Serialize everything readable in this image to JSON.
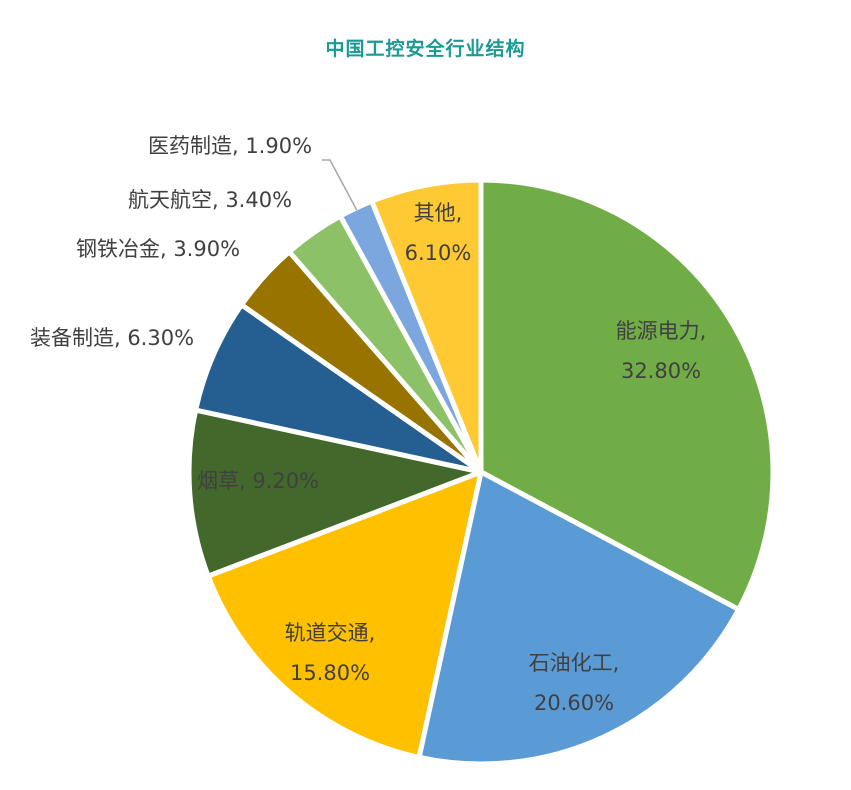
{
  "chart_data": {
    "type": "pie",
    "title": "中国工控安全行业结构",
    "slices": [
      {
        "label": "能源电力",
        "value": 32.8,
        "value_text": "32.80%",
        "color": "#70ad47"
      },
      {
        "label": "石油化工",
        "value": 20.6,
        "value_text": "20.60%",
        "color": "#5b9bd5"
      },
      {
        "label": "轨道交通",
        "value": 15.8,
        "value_text": "15.80%",
        "color": "#ffc000"
      },
      {
        "label": "烟草",
        "value": 9.2,
        "value_text": "9.20%",
        "color": "#43682b"
      },
      {
        "label": "装备制造",
        "value": 6.3,
        "value_text": "6.30%",
        "color": "#255e91"
      },
      {
        "label": "钢铁冶金",
        "value": 3.9,
        "value_text": "3.90%",
        "color": "#997300"
      },
      {
        "label": "航天航空",
        "value": 3.4,
        "value_text": "3.40%",
        "color": "#8cc168"
      },
      {
        "label": "医药制造",
        "value": 1.9,
        "value_text": "1.90%",
        "color": "#7ca7de"
      },
      {
        "label": "其他",
        "value": 6.1,
        "value_text": "6.10%",
        "color": "#ffc933"
      }
    ],
    "legend": "none",
    "title_color": "#1a9a94"
  }
}
